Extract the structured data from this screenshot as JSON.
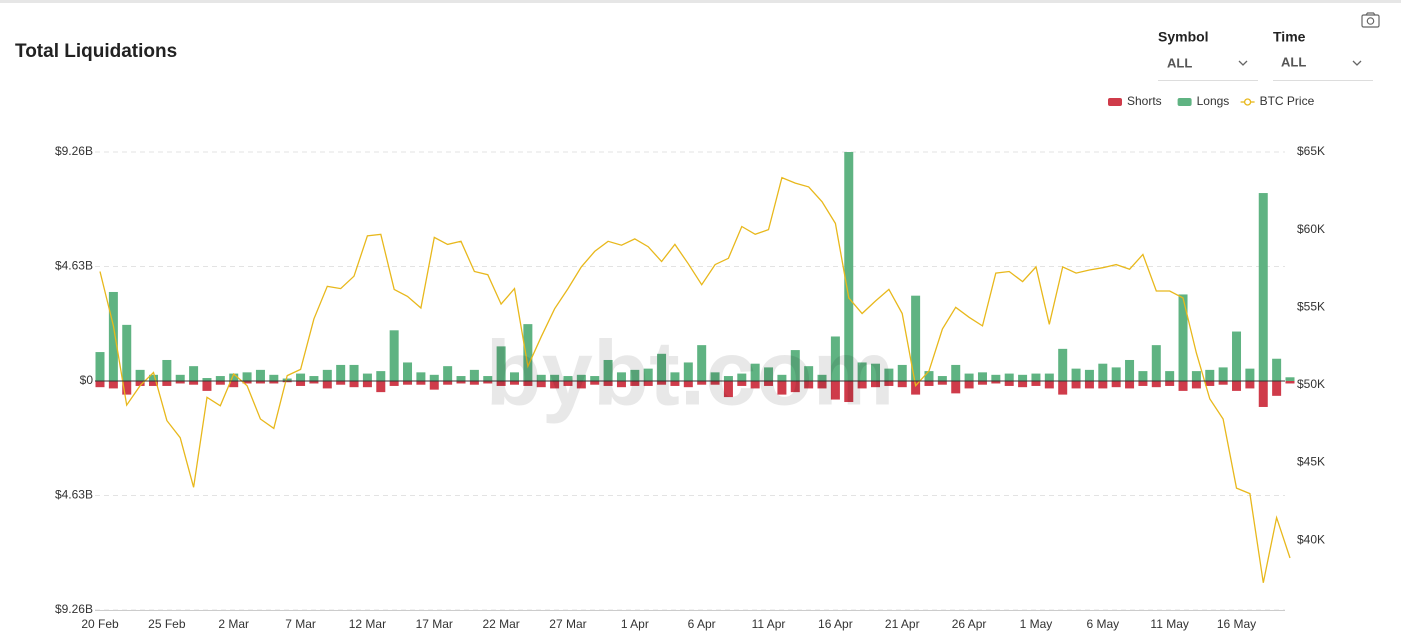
{
  "chart_data": {
    "type": "bar",
    "title": "Total Liquidations",
    "filters": [
      {
        "label": "Symbol",
        "value": "ALL"
      },
      {
        "label": "Time",
        "value": "ALL"
      }
    ],
    "watermark": "bybt.com",
    "legend": "top-right",
    "grid": true,
    "categories": [
      "20 Feb",
      null,
      null,
      null,
      null,
      "25 Feb",
      null,
      null,
      null,
      null,
      "2 Mar",
      null,
      null,
      null,
      null,
      "7 Mar",
      null,
      null,
      null,
      null,
      "12 Mar",
      null,
      null,
      null,
      null,
      "17 Mar",
      null,
      null,
      null,
      null,
      "22 Mar",
      null,
      null,
      null,
      null,
      "27 Mar",
      null,
      null,
      null,
      null,
      "1 Apr",
      null,
      null,
      null,
      null,
      "6 Apr",
      null,
      null,
      null,
      null,
      "11 Apr",
      null,
      null,
      null,
      null,
      "16 Apr",
      null,
      null,
      null,
      null,
      "21 Apr",
      null,
      null,
      null,
      null,
      "26 Apr",
      null,
      null,
      null,
      null,
      "1 May",
      null,
      null,
      null,
      null,
      "6 May",
      null,
      null,
      null,
      null,
      "11 May",
      null,
      null,
      null,
      null,
      "16 May",
      null,
      null,
      null,
      null
    ],
    "ylim": [
      -9.26,
      9.26
    ],
    "yticks": [
      {
        "value": 9.26,
        "label": "$9.26B"
      },
      {
        "value": 4.63,
        "label": "$4.63B"
      },
      {
        "value": 0,
        "label": "$0"
      },
      {
        "value": -4.63,
        "label": "$4.63B"
      },
      {
        "value": -9.26,
        "label": "$9.26B"
      }
    ],
    "y2lim": [
      35500,
      65000
    ],
    "y2ticks": [
      {
        "value": 65000,
        "label": "$65K"
      },
      {
        "value": 60000,
        "label": "$60K"
      },
      {
        "value": 55000,
        "label": "$55K"
      },
      {
        "value": 50000,
        "label": "$50K"
      },
      {
        "value": 45000,
        "label": "$45K"
      },
      {
        "value": 40000,
        "label": "$40K"
      }
    ],
    "series": [
      {
        "name": "Shorts",
        "type": "bar",
        "color": "#cf3b4a",
        "values": [
          -0.25,
          -0.3,
          -0.55,
          -0.2,
          -0.2,
          -0.2,
          -0.1,
          -0.15,
          -0.4,
          -0.15,
          -0.25,
          -0.1,
          -0.1,
          -0.1,
          -0.05,
          -0.2,
          -0.1,
          -0.3,
          -0.15,
          -0.25,
          -0.25,
          -0.45,
          -0.2,
          -0.15,
          -0.15,
          -0.35,
          -0.15,
          -0.1,
          -0.15,
          -0.1,
          -0.2,
          -0.15,
          -0.2,
          -0.25,
          -0.3,
          -0.2,
          -0.3,
          -0.15,
          -0.2,
          -0.25,
          -0.2,
          -0.2,
          -0.15,
          -0.2,
          -0.25,
          -0.15,
          -0.15,
          -0.65,
          -0.2,
          -0.3,
          -0.2,
          -0.55,
          -0.45,
          -0.3,
          -0.3,
          -0.75,
          -0.85,
          -0.3,
          -0.25,
          -0.2,
          -0.25,
          -0.55,
          -0.2,
          -0.15,
          -0.5,
          -0.3,
          -0.15,
          -0.1,
          -0.2,
          -0.25,
          -0.2,
          -0.3,
          -0.55,
          -0.3,
          -0.3,
          -0.3,
          -0.25,
          -0.3,
          -0.2,
          -0.25,
          -0.2,
          -0.4,
          -0.3,
          -0.2,
          -0.15,
          -0.4,
          -0.3,
          -1.05,
          -0.6,
          -0.1
        ]
      },
      {
        "name": "Longs",
        "type": "bar",
        "color": "#5fb382",
        "values": [
          1.17,
          3.6,
          2.27,
          0.45,
          0.25,
          0.85,
          0.25,
          0.6,
          0.12,
          0.2,
          0.3,
          0.35,
          0.45,
          0.25,
          0.1,
          0.3,
          0.2,
          0.45,
          0.65,
          0.65,
          0.3,
          0.4,
          2.05,
          0.75,
          0.35,
          0.25,
          0.6,
          0.2,
          0.45,
          0.2,
          1.4,
          0.35,
          2.3,
          0.25,
          0.25,
          0.2,
          0.25,
          0.2,
          0.85,
          0.35,
          0.45,
          0.5,
          1.1,
          0.35,
          0.75,
          1.45,
          0.35,
          0.2,
          0.3,
          0.7,
          0.55,
          0.25,
          1.25,
          0.6,
          0.25,
          1.8,
          9.26,
          0.75,
          0.7,
          0.5,
          0.65,
          3.45,
          0.4,
          0.2,
          0.65,
          0.3,
          0.35,
          0.25,
          0.3,
          0.25,
          0.3,
          0.3,
          1.3,
          0.5,
          0.45,
          0.7,
          0.55,
          0.85,
          0.4,
          1.45,
          0.4,
          3.5,
          0.4,
          0.45,
          0.55,
          2.0,
          0.5,
          7.6,
          0.9,
          0.15
        ]
      },
      {
        "name": "BTC Price",
        "type": "line",
        "axis": "y2",
        "color": "#e8b81c",
        "values": [
          57300,
          53800,
          48700,
          49950,
          50800,
          47700,
          46600,
          43400,
          49200,
          48650,
          50700,
          49950,
          47800,
          47200,
          50600,
          51000,
          54250,
          56350,
          56200,
          57000,
          59600,
          59700,
          56150,
          55700,
          54950,
          59500,
          59050,
          59250,
          57300,
          57100,
          55200,
          56200,
          51200,
          53100,
          54900,
          56200,
          57600,
          58600,
          59250,
          59000,
          59400,
          58900,
          57950,
          59050,
          57800,
          56450,
          57750,
          58150,
          60200,
          59700,
          60000,
          63350,
          63000,
          62750,
          61800,
          60400,
          55600,
          54600,
          55400,
          56150,
          54600,
          49950,
          50900,
          53600,
          55000,
          54350,
          53800,
          57200,
          57300,
          56650,
          57600,
          53900,
          57600,
          57200,
          57400,
          57550,
          57750,
          57450,
          58400,
          56050,
          56050,
          55600,
          52050,
          49100,
          47800,
          43350,
          43000,
          37250,
          41450,
          38850
        ]
      }
    ]
  }
}
